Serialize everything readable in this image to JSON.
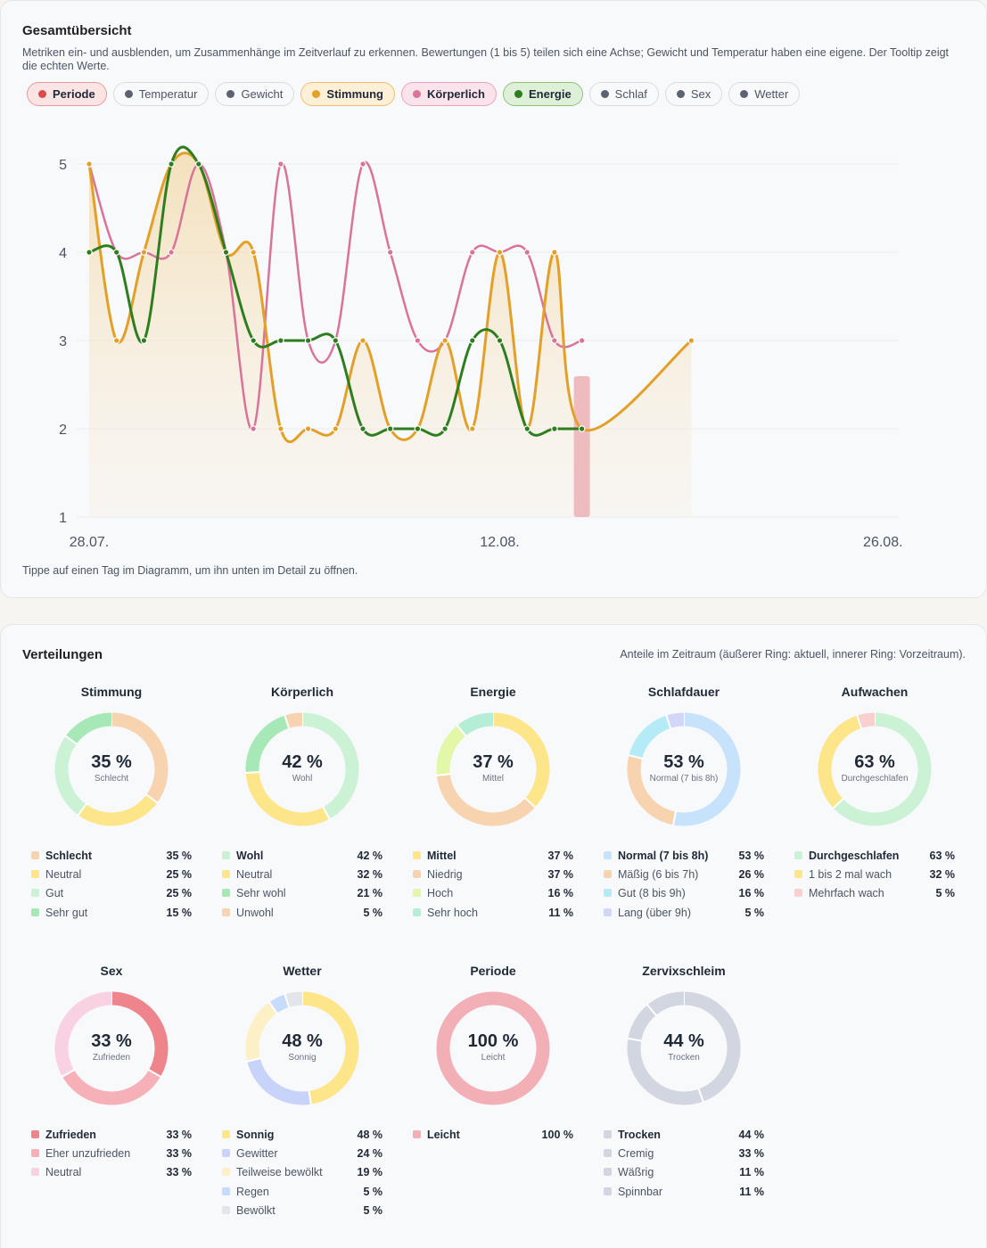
{
  "overview": {
    "title": "Gesamtübersicht",
    "description": "Metriken ein- und ausblenden, um Zusammenhänge im Zeitverlauf zu erkennen. Bewertungen (1 bis 5) teilen sich eine Achse; Gewicht und Temperatur haben eine eigene. Der Tooltip zeigt die echten Werte.",
    "chips": [
      {
        "label": "Periode",
        "active": true,
        "color": "#dc4b4b",
        "bg": "#fbe4e4",
        "border": "#e79a9a"
      },
      {
        "label": "Temperatur",
        "active": false,
        "color": "#5b6270"
      },
      {
        "label": "Gewicht",
        "active": false,
        "color": "#5b6270"
      },
      {
        "label": "Stimmung",
        "active": true,
        "color": "#e3a028",
        "bg": "#fdf0d6",
        "border": "#ecc06e"
      },
      {
        "label": "Körperlich",
        "active": true,
        "color": "#d9739a",
        "bg": "#fbe3ec",
        "border": "#e7a3bd"
      },
      {
        "label": "Energie",
        "active": true,
        "color": "#2e7d1f",
        "bg": "#dff0d8",
        "border": "#8cc27c"
      },
      {
        "label": "Schlaf",
        "active": false,
        "color": "#5b6270"
      },
      {
        "label": "Sex",
        "active": false,
        "color": "#5b6270"
      },
      {
        "label": "Wetter",
        "active": false,
        "color": "#5b6270"
      }
    ],
    "hint": "Tippe auf einen Tag im Diagramm, um ihn unten im Detail zu öffnen."
  },
  "chart_data": {
    "type": "line",
    "title": "",
    "xlabel": "",
    "ylabel": "",
    "ylim": [
      1,
      5
    ],
    "yticks": [
      "1",
      "2",
      "3",
      "4",
      "5"
    ],
    "xticks": [
      {
        "day": 0,
        "label": "28.07."
      },
      {
        "day": 15,
        "label": "12.08."
      },
      {
        "day": 29,
        "label": "26.08."
      }
    ],
    "x_days": [
      0,
      1,
      2,
      3,
      4,
      5,
      6,
      7,
      8,
      9,
      10,
      11,
      12,
      13,
      14,
      15,
      16,
      17,
      18
    ],
    "period_days": [
      18
    ],
    "series": [
      {
        "name": "Stimmung",
        "color": "#e3a028",
        "fill": true,
        "values": [
          5,
          3,
          4,
          5,
          5,
          4,
          4,
          2,
          2,
          2,
          3,
          2,
          2,
          3,
          2,
          4,
          2,
          4,
          2
        ],
        "extension": {
          "day": 22,
          "value": 3
        }
      },
      {
        "name": "Körperlich",
        "color": "#d9739a",
        "values": [
          5,
          4,
          4,
          4,
          5,
          4,
          2,
          5,
          3,
          3,
          5,
          4,
          3,
          3,
          4,
          4,
          4,
          3,
          3
        ]
      },
      {
        "name": "Energie",
        "color": "#2e7d1f",
        "values": [
          4,
          4,
          3,
          5,
          5,
          4,
          3,
          3,
          3,
          3,
          2,
          2,
          2,
          2,
          3,
          3,
          2,
          2,
          2
        ]
      }
    ]
  },
  "distributions": {
    "title": "Verteilungen",
    "subtitle": "Anteile im Zeitraum (äußerer Ring: aktuell, innerer Ring: Vorzeitraum).",
    "items": [
      {
        "title": "Stimmung",
        "center_pct": "35 %",
        "center_label": "Schlecht",
        "legend": [
          {
            "label": "Schlecht",
            "value": "35 %",
            "color": "#f8d3b0"
          },
          {
            "label": "Neutral",
            "value": "25 %",
            "color": "#fde68a"
          },
          {
            "label": "Gut",
            "value": "25 %",
            "color": "#ccf2d6"
          },
          {
            "label": "Sehr gut",
            "value": "15 %",
            "color": "#a6e8b6"
          }
        ]
      },
      {
        "title": "Körperlich",
        "center_pct": "42 %",
        "center_label": "Wohl",
        "legend": [
          {
            "label": "Wohl",
            "value": "42 %",
            "color": "#ccf2d6"
          },
          {
            "label": "Neutral",
            "value": "32 %",
            "color": "#fde68a"
          },
          {
            "label": "Sehr wohl",
            "value": "21 %",
            "color": "#a6e8b6"
          },
          {
            "label": "Unwohl",
            "value": "5 %",
            "color": "#f8d3b0"
          }
        ]
      },
      {
        "title": "Energie",
        "center_pct": "37 %",
        "center_label": "Mittel",
        "legend": [
          {
            "label": "Mittel",
            "value": "37 %",
            "color": "#fde68a"
          },
          {
            "label": "Niedrig",
            "value": "37 %",
            "color": "#f8d3b0"
          },
          {
            "label": "Hoch",
            "value": "16 %",
            "color": "#e3f7a8"
          },
          {
            "label": "Sehr hoch",
            "value": "11 %",
            "color": "#b5eed6"
          }
        ]
      },
      {
        "title": "Schlafdauer",
        "center_pct": "53 %",
        "center_label": "Normal (7 bis 8h)",
        "legend": [
          {
            "label": "Normal (7 bis 8h)",
            "value": "53 %",
            "color": "#c7e2fb"
          },
          {
            "label": "Mäßig (6 bis 7h)",
            "value": "26 %",
            "color": "#f8d3b0"
          },
          {
            "label": "Gut (8 bis 9h)",
            "value": "16 %",
            "color": "#b4ebf7"
          },
          {
            "label": "Lang (über 9h)",
            "value": "5 %",
            "color": "#d2d6f8"
          }
        ]
      },
      {
        "title": "Aufwachen",
        "center_pct": "63 %",
        "center_label": "Durchgeschlafen",
        "legend": [
          {
            "label": "Durchgeschlafen",
            "value": "63 %",
            "color": "#ccf2d6"
          },
          {
            "label": "1 bis 2 mal wach",
            "value": "32 %",
            "color": "#fde68a"
          },
          {
            "label": "Mehrfach wach",
            "value": "5 %",
            "color": "#f9cfcf"
          }
        ]
      },
      {
        "title": "Sex",
        "center_pct": "33 %",
        "center_label": "Zufrieden",
        "legend": [
          {
            "label": "Zufrieden",
            "value": "33 %",
            "color": "#ee858c"
          },
          {
            "label": "Eher unzufrieden",
            "value": "33 %",
            "color": "#f5b0b8"
          },
          {
            "label": "Neutral",
            "value": "33 %",
            "color": "#f8d2e3"
          }
        ]
      },
      {
        "title": "Wetter",
        "center_pct": "48 %",
        "center_label": "Sonnig",
        "legend": [
          {
            "label": "Sonnig",
            "value": "48 %",
            "color": "#fde68a"
          },
          {
            "label": "Gewitter",
            "value": "24 %",
            "color": "#c8d3fa"
          },
          {
            "label": "Teilweise bewölkt",
            "value": "19 %",
            "color": "#fdf0c6"
          },
          {
            "label": "Regen",
            "value": "5 %",
            "color": "#c7dcfa"
          },
          {
            "label": "Bewölkt",
            "value": "5 %",
            "color": "#e3e5ea"
          }
        ]
      },
      {
        "title": "Periode",
        "center_pct": "100 %",
        "center_label": "Leicht",
        "legend": [
          {
            "label": "Leicht",
            "value": "100 %",
            "color": "#f2afb5"
          }
        ]
      },
      {
        "title": "Zervixschleim",
        "center_pct": "44 %",
        "center_label": "Trocken",
        "legend": [
          {
            "label": "Trocken",
            "value": "44 %",
            "color": "#d2d6e0"
          },
          {
            "label": "Cremig",
            "value": "33 %",
            "color": "#d2d6e0"
          },
          {
            "label": "Wäßrig",
            "value": "11 %",
            "color": "#d2d6e0"
          },
          {
            "label": "Spinnbar",
            "value": "11 %",
            "color": "#d2d6e0"
          }
        ]
      }
    ]
  }
}
